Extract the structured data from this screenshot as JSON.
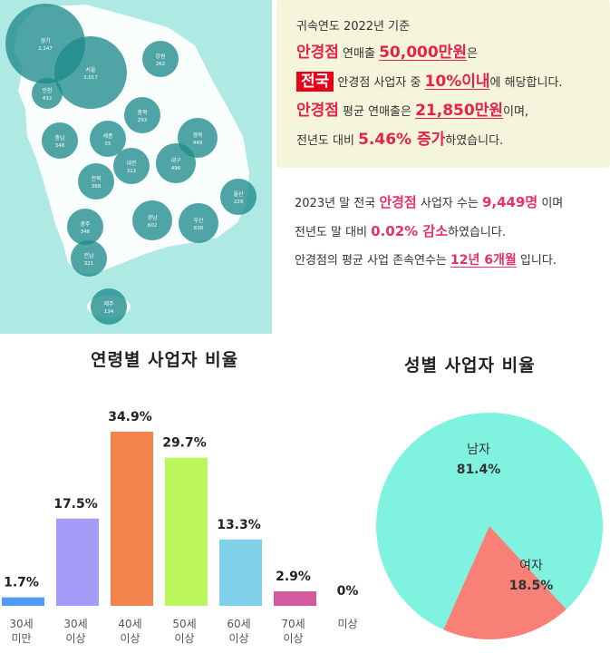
{
  "map": {
    "regions": [
      {
        "name": "경기",
        "value": "2,147"
      },
      {
        "name": "서울",
        "value": "2,017"
      },
      {
        "name": "인천",
        "value": "432"
      },
      {
        "name": "강원",
        "value": "262"
      },
      {
        "name": "충북",
        "value": "293"
      },
      {
        "name": "충남",
        "value": "348"
      },
      {
        "name": "세종",
        "value": "55"
      },
      {
        "name": "대전",
        "value": "312"
      },
      {
        "name": "경북",
        "value": "449"
      },
      {
        "name": "대구",
        "value": "496"
      },
      {
        "name": "전북",
        "value": "368"
      },
      {
        "name": "울산",
        "value": "229"
      },
      {
        "name": "경남",
        "value": "602"
      },
      {
        "name": "부산",
        "value": "638"
      },
      {
        "name": "광주",
        "value": "346"
      },
      {
        "name": "전남",
        "value": "321"
      },
      {
        "name": "제주",
        "value": "134"
      }
    ]
  },
  "info": {
    "caption": "귀속연도 2022년 기준",
    "l1_a": "안경점",
    "l1_b": " 연매출 ",
    "l1_c": "50,000만원",
    "l1_d": "은",
    "l2_tag": "전국",
    "l2_b": " 안경점 사업자 중 ",
    "l2_c": "10%이내",
    "l2_d": "에 해당합니다.",
    "l3_a": "안경점",
    "l3_b": " 평균 연매출은 ",
    "l3_c": "21,850만원",
    "l3_d": "이며,",
    "l4_a": "전년도 대비 ",
    "l4_b": "5.46% 증가",
    "l4_c": "하였습니다."
  },
  "stats": {
    "s1_a": "2023년 말 전국 ",
    "s1_b": "안경점",
    "s1_c": " 사업자 수는 ",
    "s1_d": "9,449명",
    "s1_e": " 이며",
    "s2_a": "전년도 말 대비 ",
    "s2_b": "0.02% 감소",
    "s2_c": "하였습니다.",
    "s3_a": "안경점의 평균 사업 존속연수는 ",
    "s3_b": "12년 6개월",
    "s3_c": " 입니다."
  },
  "chart_data": [
    {
      "type": "bar",
      "title": "연령별 사업자 비율",
      "categories": [
        [
          "30세",
          "미만"
        ],
        [
          "30세",
          "이상"
        ],
        [
          "40세",
          "이상"
        ],
        [
          "50세",
          "이상"
        ],
        [
          "60세",
          "이상"
        ],
        [
          "70세",
          "이상"
        ],
        [
          "미상"
        ]
      ],
      "values": [
        1.7,
        17.5,
        34.9,
        29.7,
        13.3,
        2.9,
        0
      ],
      "labels": [
        "1.7%",
        "17.5%",
        "34.9%",
        "29.7%",
        "13.3%",
        "2.9%",
        "0%"
      ],
      "colors": [
        "#4e9af5",
        "#a59cf8",
        "#f4824b",
        "#bdf55c",
        "#7fd0ea",
        "#d45a9e",
        "#cccccc"
      ]
    },
    {
      "type": "pie",
      "title": "성별 사업자 비율",
      "slices": [
        {
          "name": "남자",
          "value": 81.4,
          "label": "81.4%",
          "color": "#7ff3e0"
        },
        {
          "name": "여자",
          "value": 18.5,
          "label": "18.5%",
          "color": "#f88077"
        }
      ]
    }
  ]
}
